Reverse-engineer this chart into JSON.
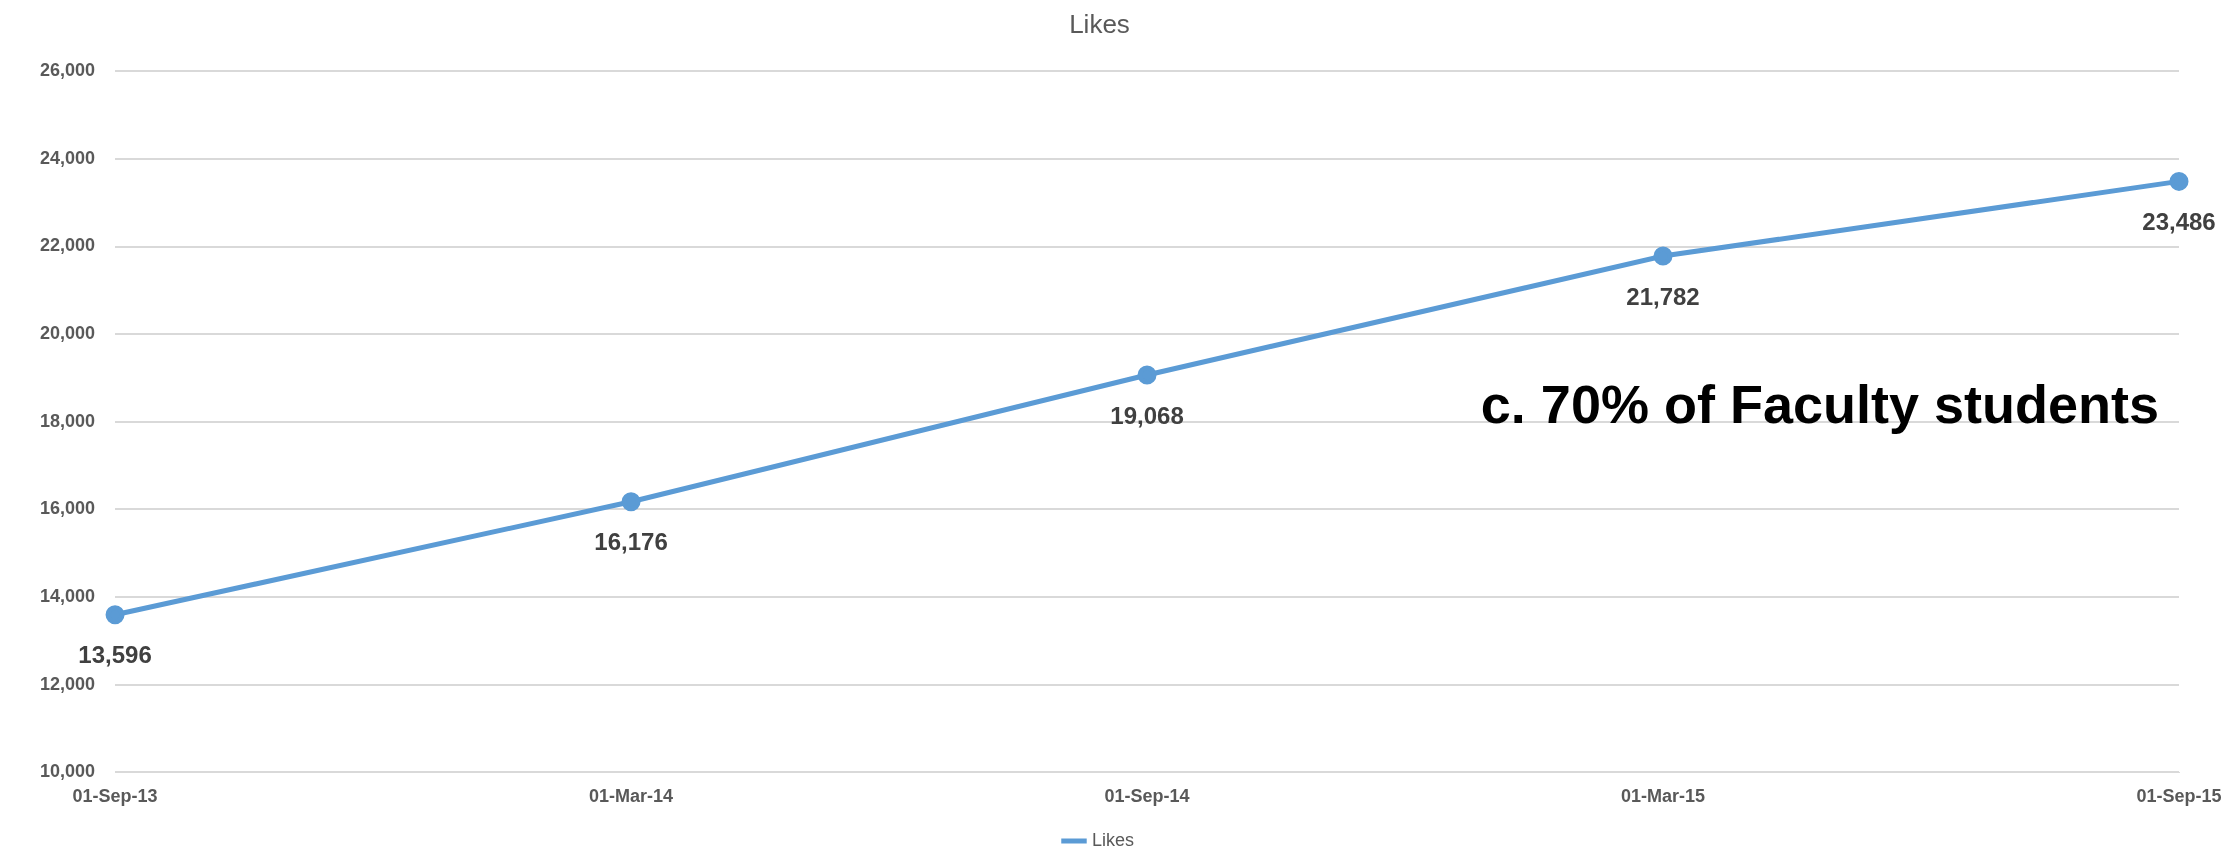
{
  "chart_data": {
    "type": "line",
    "title": "Likes",
    "categories": [
      "01-Sep-13",
      "01-Mar-14",
      "01-Sep-14",
      "01-Mar-15",
      "01-Sep-15"
    ],
    "series": [
      {
        "name": "Likes",
        "color": "#5b9bd5",
        "values": [
          13596,
          16176,
          19068,
          21782,
          23486
        ],
        "value_labels": [
          "13,596",
          "16,176",
          "19,068",
          "21,782",
          "23,486"
        ]
      }
    ],
    "ylim": [
      10000,
      26000
    ],
    "yticks": [
      {
        "value": 10000,
        "label": "10,000"
      },
      {
        "value": 12000,
        "label": "12,000"
      },
      {
        "value": 14000,
        "label": "14,000"
      },
      {
        "value": 16000,
        "label": "16,000"
      },
      {
        "value": 18000,
        "label": "18,000"
      },
      {
        "value": 20000,
        "label": "20,000"
      },
      {
        "value": 22000,
        "label": "22,000"
      },
      {
        "value": 24000,
        "label": "24,000"
      },
      {
        "value": 26000,
        "label": "26,000"
      }
    ],
    "grid": "y",
    "legend": "bottom",
    "marker": "circle",
    "line_style": "solid",
    "annotations": [
      "c. 70% of Faculty students"
    ]
  }
}
